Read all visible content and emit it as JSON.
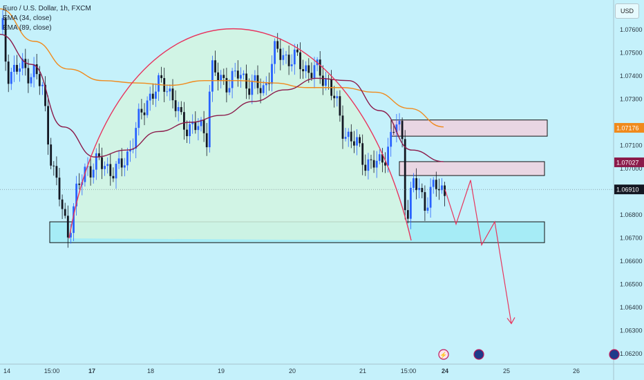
{
  "header": {
    "symbol_line": "Euro / U.S. Dollar, 1h, FXCM",
    "indicators": [
      "EMA (34, close)",
      "EMA (89, close)"
    ],
    "currency_button": "USD"
  },
  "colors": {
    "background": "#c5f1fb",
    "candle_up": "#2962ff",
    "candle_down": "#131722",
    "ema34": "#8b1a4a",
    "ema89": "#f08a1c",
    "arc": "#e8345c",
    "arrow": "#e8345c",
    "resistance_zone": "#e9d6e3",
    "support_zone": "#a6ecf6",
    "arc_fill": "#d2f4e0"
  },
  "chart_data": {
    "type": "candlestick",
    "ylim": [
      1.0615,
      1.0773
    ],
    "y_ticks": [
      1.076,
      1.075,
      1.074,
      1.073,
      1.0721,
      1.071,
      1.07,
      1.069,
      1.068,
      1.067,
      1.066,
      1.065,
      1.064,
      1.063,
      1.062
    ],
    "y_tick_labels": [
      "1.07600",
      "1.07500",
      "1.07400",
      "1.07300",
      "",
      "1.07100",
      "1.07000",
      "",
      "1.06800",
      "1.06700",
      "1.06600",
      "1.06500",
      "1.06400",
      "1.06300",
      "1.06200"
    ],
    "price_badges": [
      {
        "label": "1.07176",
        "value": 1.07176,
        "color": "#f08a1c"
      },
      {
        "label": "1.07027",
        "value": 1.07027,
        "color": "#8b1a4a"
      },
      {
        "label": "1.06910",
        "value": 1.0691,
        "color": "#131722"
      }
    ],
    "x_ticks": [
      {
        "label": "14",
        "bold": false
      },
      {
        "label": "15:00",
        "bold": false
      },
      {
        "label": "17",
        "bold": true
      },
      {
        "label": "18",
        "bold": false
      },
      {
        "label": "19",
        "bold": false
      },
      {
        "label": "20",
        "bold": false
      },
      {
        "label": "21",
        "bold": false
      },
      {
        "label": "15:00",
        "bold": false
      },
      {
        "label": "24",
        "bold": true
      },
      {
        "label": "25",
        "bold": false
      },
      {
        "label": "26",
        "bold": false
      }
    ],
    "ema34": [
      1.0758,
      1.0745,
      1.0718,
      1.0705,
      1.0708,
      1.0716,
      1.072,
      1.0723,
      1.0729,
      1.0734,
      1.0739,
      1.0738,
      1.0725,
      1.0708,
      1.0703
    ],
    "ema89": [
      1.0769,
      1.0755,
      1.0743,
      1.0738,
      1.0737,
      1.0736,
      1.0738,
      1.0738,
      1.0737,
      1.0735,
      1.0735,
      1.0733,
      1.0726,
      1.0718
    ],
    "zones": [
      {
        "name": "resistance-upper",
        "high": 1.0721,
        "low": 1.0714
      },
      {
        "name": "resistance-lower",
        "high": 1.0703,
        "low": 1.0697
      },
      {
        "name": "support",
        "high": 1.0677,
        "low": 1.0668
      }
    ],
    "projection": [
      1.0691,
      1.0676,
      1.0695,
      1.0667,
      1.0677,
      1.0633
    ]
  }
}
